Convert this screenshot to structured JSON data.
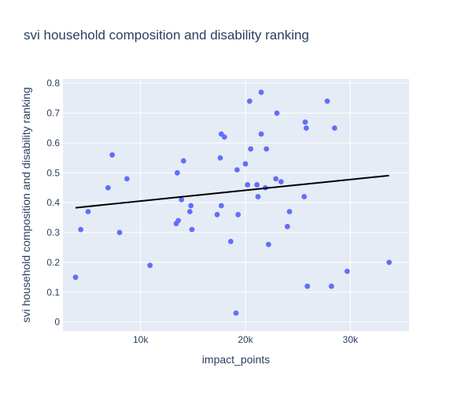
{
  "chart_data": {
    "type": "scatter",
    "title": "svi household composition and disability ranking",
    "xlabel": "impact_points",
    "ylabel": "svi household composition and disability ranking",
    "xlim": [
      2600,
      35600
    ],
    "ylim": [
      -0.03,
      0.815
    ],
    "x_ticks": [
      10000,
      20000,
      30000
    ],
    "x_tick_labels": [
      "10k",
      "20k",
      "30k"
    ],
    "y_ticks": [
      0,
      0.1,
      0.2,
      0.3,
      0.4,
      0.5,
      0.6,
      0.7,
      0.8
    ],
    "y_tick_labels": [
      "0",
      "0.1",
      "0.2",
      "0.3",
      "0.4",
      "0.5",
      "0.6",
      "0.7",
      "0.8"
    ],
    "grid": true,
    "legend": "none",
    "colors": {
      "background": "#ffffff",
      "plot_background": "#e5ecf6",
      "grid": "#ffffff",
      "marker": "#636efa",
      "trendline": "#000000",
      "text": "#2a3f5f"
    },
    "series": [
      {
        "type": "scatter",
        "x": [
          3800,
          4300,
          5000,
          6900,
          7300,
          8000,
          8700,
          10900,
          13400,
          13500,
          13600,
          13900,
          14100,
          14700,
          14800,
          14900,
          17300,
          17600,
          17700,
          17700,
          18000,
          18600,
          19100,
          19200,
          19300,
          20000,
          20200,
          20400,
          20500,
          21100,
          21200,
          21500,
          21500,
          21900,
          22000,
          22200,
          22900,
          23000,
          23400,
          24000,
          24200,
          25600,
          25700,
          25800,
          25900,
          27800,
          28200,
          28500,
          29700,
          33700
        ],
        "y": [
          0.15,
          0.31,
          0.37,
          0.45,
          0.56,
          0.3,
          0.48,
          0.19,
          0.33,
          0.5,
          0.34,
          0.41,
          0.54,
          0.37,
          0.39,
          0.31,
          0.36,
          0.55,
          0.39,
          0.63,
          0.62,
          0.27,
          0.03,
          0.51,
          0.36,
          0.53,
          0.46,
          0.74,
          0.58,
          0.46,
          0.42,
          0.77,
          0.63,
          0.45,
          0.58,
          0.26,
          0.48,
          0.7,
          0.47,
          0.32,
          0.37,
          0.42,
          0.67,
          0.65,
          0.12,
          0.74,
          0.12,
          0.65,
          0.17,
          0.2
        ]
      },
      {
        "type": "line",
        "x": [
          3800,
          33700
        ],
        "y": [
          0.383,
          0.491
        ]
      }
    ]
  }
}
